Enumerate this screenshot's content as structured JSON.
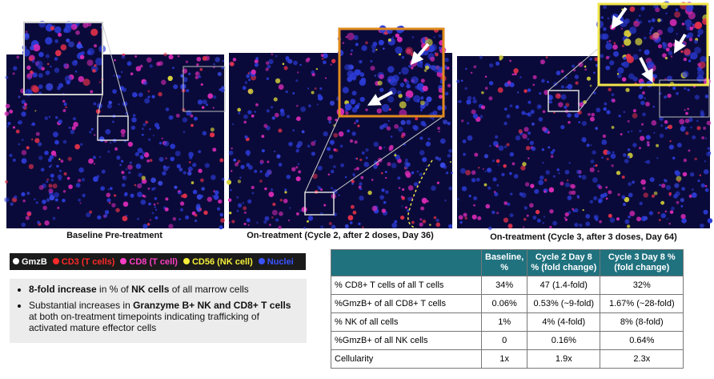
{
  "captions": [
    "Baseline Pre-treatment",
    "On-treatment (Cycle 2, after 2 doses, Day 36)",
    "On-treatment (Cycle 3, after 3 doses, Day 64)"
  ],
  "legend": [
    {
      "label": "GmzB",
      "color": "#ffffff"
    },
    {
      "label": "CD3 (T cells)",
      "color": "#ff2a2a"
    },
    {
      "label": "CD8 (T cell)",
      "color": "#ff3fc8"
    },
    {
      "label": "CD56 (NK cell)",
      "color": "#f5f03a"
    },
    {
      "label": "Nuclei",
      "color": "#3a52ff"
    }
  ],
  "bullets": [
    [
      {
        "text": "8-fold increase",
        "bold": true
      },
      {
        "text": " in % of ",
        "bold": false
      },
      {
        "text": "NK cells",
        "bold": true
      },
      {
        "text": " of all marrow cells",
        "bold": false
      }
    ],
    [
      {
        "text": "Substantial increases in ",
        "bold": false
      },
      {
        "text": "Granzyme B+ NK and CD8+ T cells",
        "bold": true
      },
      {
        "text": " at both on-treatment timepoints indicating trafficking of activated mature effector cells",
        "bold": false
      }
    ]
  ],
  "table": {
    "header": [
      "Baseline, %",
      "Cycle 2 Day 8 % (fold change)",
      "Cycle 3 Day 8 % (fold change)"
    ],
    "rows": [
      [
        "% CD8+ T cells of all T cells",
        "34%",
        "47 (1.4-fold)",
        "32%"
      ],
      [
        "%GmzB+ of all CD8+ T cells",
        "0.06%",
        "0.53% (~9-fold)",
        "1.67% (~28-fold)"
      ],
      [
        "% NK of all cells",
        "1%",
        "4% (4-fold)",
        "8% (8-fold)"
      ],
      [
        "%GmzB+ of all NK cells",
        "0",
        "0.16%",
        "0.64%"
      ],
      [
        "Cellularity",
        "1x",
        "1.9x",
        "2.3x"
      ]
    ]
  }
}
